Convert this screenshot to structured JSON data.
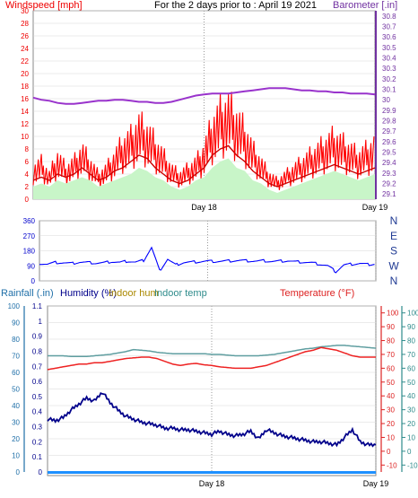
{
  "chart_data": [
    {
      "type": "line",
      "title": "For the 2 days prior to : April 19 2021",
      "ylabel_left": "Windspeed [mph]",
      "ylabel_right": "Barometer [.in]",
      "y_left_ticks": [
        "0",
        "2",
        "4",
        "6",
        "8",
        "10",
        "12",
        "14",
        "16",
        "18",
        "20",
        "22",
        "24",
        "26",
        "28",
        "30"
      ],
      "y_left_range": [
        0,
        30
      ],
      "y_right_ticks": [
        "29.1",
        "29.2",
        "29.3",
        "29.4",
        "29.5",
        "29.6",
        "29.7",
        "29.8",
        "29.9",
        "30",
        "30.1",
        "30.2",
        "30.3",
        "30.4",
        "30.5",
        "30.6",
        "30.7",
        "30.8"
      ],
      "y_right_range": [
        29.05,
        30.85
      ],
      "x_tick_labels": [
        "Day 18",
        "Day 19"
      ],
      "x_range_hours": [
        0,
        48
      ],
      "x_ticks_hours": [
        24,
        48
      ],
      "grid": true,
      "series": [
        {
          "name": "Windspeed",
          "axis": "left",
          "color": "#ff0000",
          "style": "gust",
          "values": [
            5,
            6,
            4,
            7,
            5,
            6,
            8,
            6,
            4,
            5,
            7,
            9,
            10,
            12,
            11,
            9,
            7,
            5,
            4,
            5,
            6,
            8,
            12,
            14,
            15,
            13,
            11,
            8,
            6,
            4,
            3,
            4,
            5,
            6,
            7,
            8,
            9,
            10,
            9,
            8,
            7,
            8,
            9
          ]
        },
        {
          "name": "Wind average",
          "axis": "left",
          "color": "#cc0000",
          "style": "line",
          "values": [
            3,
            3.5,
            3,
            4,
            3.5,
            4,
            5,
            4,
            3,
            3.5,
            4.5,
            5,
            6,
            7,
            6.5,
            5,
            4,
            3,
            2.5,
            3,
            4,
            5,
            7,
            8,
            8.5,
            7,
            6,
            4.5,
            3.5,
            2.5,
            2,
            2.5,
            3,
            3.5,
            4,
            4.5,
            5,
            5.5,
            5,
            4.5,
            4,
            4.5,
            5
          ]
        },
        {
          "name": "Gust fill",
          "axis": "left",
          "color": "#c8f5c8",
          "style": "area",
          "values": [
            2,
            2.5,
            2,
            3,
            2.5,
            3,
            3.5,
            3,
            2,
            2.5,
            3,
            3.5,
            4,
            5,
            4.5,
            3.5,
            3,
            2,
            1.5,
            2,
            3,
            3.5,
            5,
            6,
            6.5,
            5,
            4.5,
            3,
            2.5,
            1.5,
            1,
            1.5,
            2,
            2.5,
            3,
            3.5,
            4,
            4.5,
            4,
            3.5,
            3,
            3.5,
            4
          ]
        },
        {
          "name": "Barometer",
          "axis": "right",
          "color": "#9933cc",
          "style": "line",
          "values": [
            30.02,
            30.0,
            29.99,
            29.97,
            29.96,
            29.96,
            29.97,
            29.98,
            29.99,
            29.99,
            30.0,
            30.0,
            29.99,
            29.98,
            29.98,
            29.97,
            29.97,
            29.98,
            30.0,
            30.02,
            30.04,
            30.05,
            30.06,
            30.06,
            30.06,
            30.07,
            30.08,
            30.09,
            30.1,
            30.11,
            30.11,
            30.11,
            30.1,
            30.09,
            30.09,
            30.08,
            30.08,
            30.07,
            30.07,
            30.06,
            30.06,
            30.06,
            30.05
          ]
        }
      ]
    },
    {
      "type": "line",
      "title": "",
      "ylabel_left": "",
      "y_left_ticks": [
        "0",
        "90",
        "180",
        "270",
        "360"
      ],
      "y_left_range": [
        0,
        360
      ],
      "y_right_labels": [
        "N",
        "W",
        "S",
        "E",
        "N"
      ],
      "x_range_hours": [
        0,
        48
      ],
      "x_ticks_hours": [
        24,
        48
      ],
      "grid": true,
      "series": [
        {
          "name": "Wind direction",
          "axis": "left",
          "color": "#0000ff",
          "values": [
            105,
            100,
            110,
            108,
            104,
            112,
            110,
            106,
            108,
            115,
            110,
            118,
            112,
            122,
            200,
            60,
            130,
            95,
            110,
            112,
            115,
            118,
            116,
            118,
            120,
            122,
            120,
            118,
            120,
            116,
            118,
            120,
            114,
            112,
            108,
            100,
            90,
            55,
            95,
            100,
            104,
            98,
            102
          ]
        }
      ]
    },
    {
      "type": "line",
      "title": "",
      "ylabel_left": "Rainfall (.in)",
      "ylabel_left2": "Humidity (%)",
      "ylabel_indoor_hum": "Indoor hum",
      "ylabel_indoor_temp": "Indoor temp",
      "ylabel_right": "Temperature (°F)",
      "rain_ticks": [
        "0",
        "10",
        "20",
        "30",
        "40",
        "50",
        "60",
        "70",
        "80",
        "90",
        "100"
      ],
      "humidity_ticks": [
        "0",
        "0.1",
        "0.2",
        "0.3",
        "0.4",
        "0.5",
        "0.6",
        "0.7",
        "0.8",
        "0.9",
        "1",
        "1.1"
      ],
      "temp_ticks": [
        "-10",
        "0",
        "10",
        "20",
        "30",
        "40",
        "50",
        "60",
        "70",
        "80",
        "90",
        "100"
      ],
      "temp_range": [
        -15,
        105
      ],
      "indoor_ticks": [
        "-10",
        "0",
        "10",
        "20",
        "30",
        "40",
        "50",
        "60",
        "70",
        "80",
        "90",
        "100"
      ],
      "x_tick_labels": [
        "Day 18",
        "Day 19"
      ],
      "x_range_hours": [
        0,
        48
      ],
      "x_ticks_hours": [
        24,
        48
      ],
      "grid": true,
      "series": [
        {
          "name": "Humidity",
          "axis": "humidity",
          "color": "#00008b",
          "values": [
            0.35,
            0.34,
            0.36,
            0.41,
            0.45,
            0.49,
            0.47,
            0.53,
            0.46,
            0.41,
            0.37,
            0.35,
            0.33,
            0.32,
            0.31,
            0.29,
            0.29,
            0.28,
            0.28,
            0.27,
            0.26,
            0.25,
            0.27,
            0.25,
            0.24,
            0.25,
            0.27,
            0.22,
            0.28,
            0.26,
            0.24,
            0.23,
            0.22,
            0.21,
            0.2,
            0.2,
            0.19,
            0.18,
            0.23,
            0.28,
            0.2,
            0.18,
            0.18
          ]
        },
        {
          "name": "Indoor temp",
          "axis": "indoor",
          "color": "#5f9ea0",
          "values": [
            69,
            69,
            69,
            68.5,
            68.5,
            68.5,
            69,
            69.5,
            70,
            71,
            72,
            73.5,
            73,
            72.5,
            71.5,
            71,
            70.5,
            70.5,
            70.5,
            70.5,
            70.5,
            70,
            70,
            69.5,
            69,
            69,
            69,
            69,
            69.5,
            70,
            71,
            72,
            73,
            74,
            74.5,
            75.5,
            76,
            76.5,
            76.5,
            76,
            75.5,
            75,
            74.5
          ]
        },
        {
          "name": "Temperature",
          "axis": "temp",
          "color": "#ee2222",
          "values": [
            59,
            60,
            61,
            62,
            63,
            63,
            64,
            64,
            65,
            66,
            67,
            67.5,
            68,
            68,
            67,
            65,
            63,
            62,
            63,
            63.5,
            62.5,
            62,
            61,
            60.5,
            60,
            60,
            60,
            61,
            62,
            64,
            66,
            68,
            70,
            72,
            73,
            75,
            74,
            73,
            71,
            69,
            68,
            68,
            68
          ]
        }
      ]
    }
  ]
}
